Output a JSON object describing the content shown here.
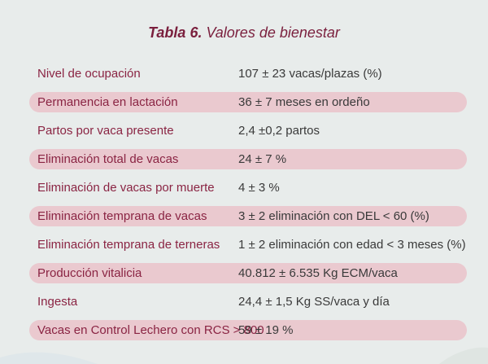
{
  "table": {
    "title_bold": "Tabla 6.",
    "title_rest": "Valores de bienestar",
    "rows": [
      {
        "label": "Nivel de ocupación",
        "value": "107 ± 23 vacas/plazas (%)",
        "shaded": false
      },
      {
        "label": "Permanencia en lactación",
        "value": "36 ± 7 meses en ordeño",
        "shaded": true
      },
      {
        "label": "Partos por vaca presente",
        "value": "2,4 ±0,2  partos",
        "shaded": false
      },
      {
        "label": "Eliminación total de vacas",
        "value": "24 ± 7 %",
        "shaded": true
      },
      {
        "label": "Eliminación de vacas por muerte",
        "value": "4 ± 3 %",
        "shaded": false
      },
      {
        "label": "Eliminación temprana de vacas",
        "value": "3 ± 2 eliminación con DEL < 60 (%)",
        "shaded": true
      },
      {
        "label": "Eliminación temprana de terneras",
        "value": "1 ± 2 eliminación con edad < 3 meses (%)",
        "shaded": false
      },
      {
        "label": "Producción vitalicia",
        "value": "40.812 ± 6.535 Kg ECM/vaca",
        "shaded": true
      },
      {
        "label": "Ingesta",
        "value": "24,4 ± 1,5 Kg SS/vaca y día",
        "shaded": false
      },
      {
        "label": "Vacas en Control Lechero con RCS > 800",
        "value": "59 ± 19 %",
        "shaded": true
      }
    ]
  },
  "colors": {
    "background": "#e8eceb",
    "title": "#7a1f3d",
    "label": "#8a2443",
    "value": "#3a3a3a",
    "band": "#eac9cf"
  }
}
